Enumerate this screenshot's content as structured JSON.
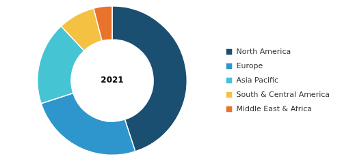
{
  "chart_data": {
    "type": "doughnut",
    "categories": [
      "North America",
      "Europe",
      "Asia Pacific",
      "South & Central America",
      "Middle East & Africa"
    ],
    "values": [
      45,
      25,
      18,
      8,
      4
    ],
    "colors": [
      "#1b4f72",
      "#2e96cc",
      "#45c4d4",
      "#f5c142",
      "#e8732a"
    ],
    "annotations": [
      "2021"
    ],
    "legend": "right"
  }
}
